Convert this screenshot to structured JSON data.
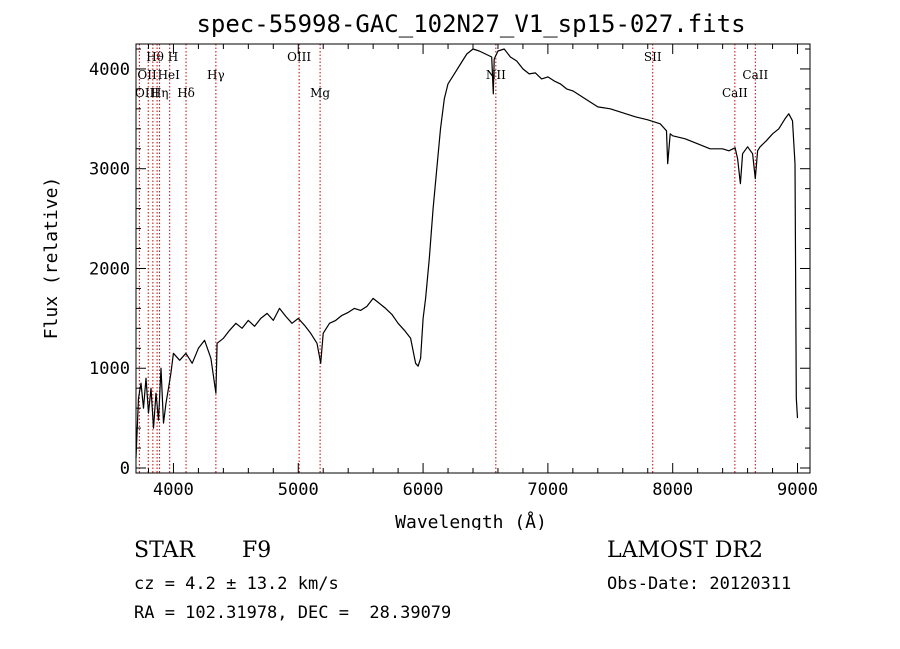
{
  "chart_data": {
    "type": "line",
    "title": "spec-55998-GAC_102N27_V1_sp15-027.fits",
    "xlabel": "Wavelength (Å)",
    "ylabel": "Flux (relative)",
    "xlim": [
      3700,
      9100
    ],
    "ylim": [
      -50,
      4250
    ],
    "xticks": [
      4000,
      5000,
      6000,
      7000,
      8000,
      9000
    ],
    "yticks": [
      0,
      1000,
      2000,
      3000,
      4000
    ],
    "series": [
      {
        "color": "#000000",
        "x": [
          3700,
          3720,
          3740,
          3760,
          3780,
          3800,
          3820,
          3840,
          3860,
          3880,
          3900,
          3920,
          3940,
          3960,
          3980,
          4000,
          4050,
          4100,
          4150,
          4200,
          4250,
          4300,
          4340,
          4350,
          4400,
          4450,
          4500,
          4550,
          4600,
          4650,
          4700,
          4750,
          4800,
          4850,
          4900,
          4950,
          5000,
          5050,
          5100,
          5150,
          5180,
          5200,
          5250,
          5300,
          5350,
          5400,
          5450,
          5500,
          5550,
          5600,
          5650,
          5700,
          5750,
          5800,
          5850,
          5900,
          5940,
          5960,
          5980,
          6000,
          6020,
          6050,
          6080,
          6110,
          6140,
          6170,
          6200,
          6250,
          6300,
          6350,
          6400,
          6450,
          6500,
          6550,
          6563,
          6570,
          6600,
          6650,
          6700,
          6750,
          6800,
          6850,
          6900,
          6950,
          7000,
          7050,
          7100,
          7150,
          7200,
          7300,
          7400,
          7500,
          7600,
          7700,
          7800,
          7900,
          7950,
          7960,
          7980,
          8000,
          8100,
          8200,
          8300,
          8400,
          8450,
          8500,
          8520,
          8542,
          8560,
          8600,
          8640,
          8662,
          8680,
          8700,
          8750,
          8800,
          8850,
          8900,
          8930,
          8960,
          8980,
          8990,
          9000
        ],
        "y": [
          100,
          700,
          850,
          600,
          900,
          550,
          800,
          400,
          750,
          480,
          1000,
          450,
          650,
          800,
          950,
          1150,
          1080,
          1150,
          1050,
          1200,
          1280,
          1100,
          750,
          1250,
          1300,
          1380,
          1450,
          1400,
          1480,
          1420,
          1500,
          1550,
          1480,
          1600,
          1520,
          1450,
          1500,
          1430,
          1350,
          1250,
          1050,
          1350,
          1450,
          1480,
          1530,
          1560,
          1600,
          1580,
          1620,
          1700,
          1650,
          1600,
          1540,
          1450,
          1380,
          1300,
          1050,
          1020,
          1100,
          1500,
          1700,
          2100,
          2600,
          3000,
          3400,
          3700,
          3850,
          3950,
          4050,
          4150,
          4200,
          4180,
          4150,
          4120,
          3750,
          4100,
          4180,
          4200,
          4120,
          4080,
          4000,
          3950,
          3960,
          3900,
          3920,
          3880,
          3850,
          3800,
          3780,
          3700,
          3620,
          3600,
          3560,
          3520,
          3490,
          3450,
          3380,
          3050,
          3350,
          3330,
          3300,
          3250,
          3200,
          3200,
          3180,
          3210,
          3100,
          2850,
          3150,
          3220,
          3150,
          2900,
          3180,
          3220,
          3280,
          3350,
          3400,
          3500,
          3550,
          3480,
          3050,
          700,
          500
        ]
      }
    ],
    "lines": [
      {
        "label": "Hθ",
        "x": 3798,
        "row": 0,
        "align": "start"
      },
      {
        "label": "H",
        "x": 3970,
        "row": 0,
        "align": "start"
      },
      {
        "label": "OII",
        "x": 3727,
        "row": 1,
        "align": "start"
      },
      {
        "label": "HeI",
        "x": 3889,
        "row": 1,
        "align": "start"
      },
      {
        "label": "Hγ",
        "x": 4340,
        "row": 1,
        "align": "middle"
      },
      {
        "label": "OIII",
        "x": 5007,
        "row": 0,
        "align": "middle"
      },
      {
        "label": "NII",
        "x": 6583,
        "row": 1,
        "align": "middle"
      },
      {
        "label": "SII",
        "x": 7840,
        "row": 0,
        "align": "middle"
      },
      {
        "label": "CaII",
        "x": 8662,
        "row": 1,
        "align": "middle"
      },
      {
        "label": "OIII",
        "x": 3869,
        "row": 2,
        "align": "end"
      },
      {
        "label": "Hη",
        "x": 3835,
        "row": 2,
        "align": "start"
      },
      {
        "label": "Hδ",
        "x": 4101,
        "row": 2,
        "align": "middle"
      },
      {
        "label": "Mg",
        "x": 5175,
        "row": 2,
        "align": "middle"
      },
      {
        "label": "CaII",
        "x": 8498,
        "row": 2,
        "align": "middle"
      }
    ]
  },
  "info": {
    "class": "STAR",
    "subclass": "F9",
    "survey": "LAMOST DR2",
    "cz": "cz = 4.2 ± 13.2 km/s",
    "obs_date": "Obs-Date: 20120311",
    "coords": "RA = 102.31978, DEC =  28.39079"
  },
  "colors": {
    "spectrum": "#000000",
    "line_marker": "#cc0000",
    "axes": "#000000"
  }
}
